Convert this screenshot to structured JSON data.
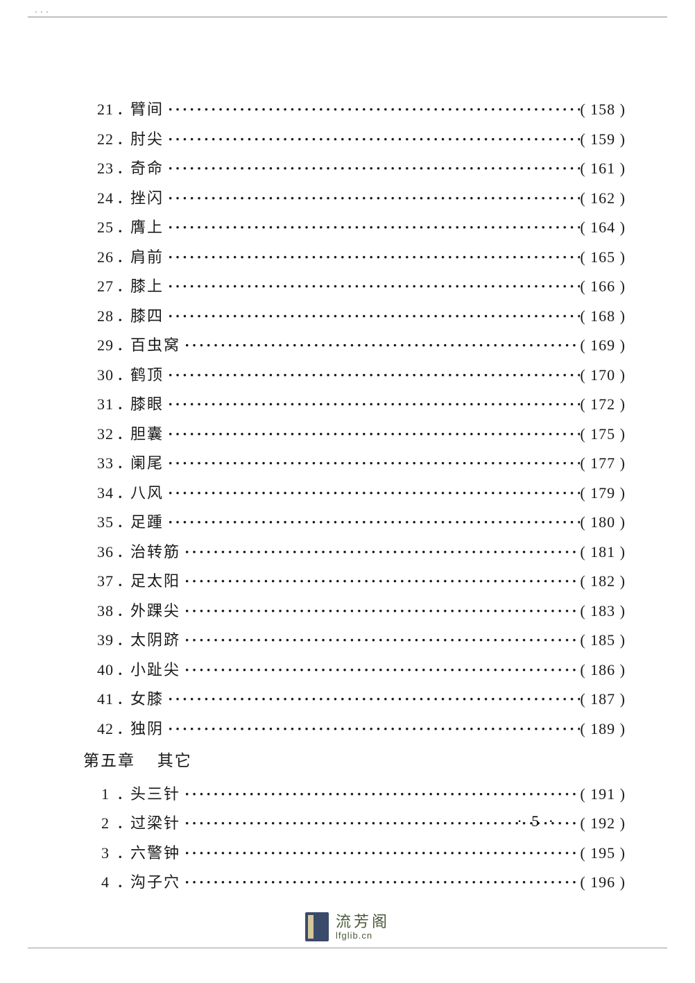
{
  "colors": {
    "text": "#1a1a1a",
    "background": "#ffffff",
    "border": "#888888",
    "logo_bg": "#3a4a6a",
    "logo_accent": "#d4c89a",
    "logo_text": "#4a5a3a"
  },
  "typography": {
    "body_fontsize": 22,
    "chapter_fontsize": 23,
    "font_family": "SimSun"
  },
  "top_mark": "···",
  "entries": [
    {
      "num": "21",
      "sep": "．",
      "title": "臂间",
      "page": "158"
    },
    {
      "num": "22",
      "sep": "．",
      "title": "肘尖",
      "page": "159"
    },
    {
      "num": "23",
      "sep": "．",
      "title": "奇命",
      "page": "161"
    },
    {
      "num": "24",
      "sep": "．",
      "title": "挫闪",
      "page": "162"
    },
    {
      "num": "25",
      "sep": "．",
      "title": "膺上",
      "page": "164"
    },
    {
      "num": "26",
      "sep": "．",
      "title": "肩前",
      "page": "165"
    },
    {
      "num": "27",
      "sep": "．",
      "title": "膝上",
      "page": "166"
    },
    {
      "num": "28",
      "sep": "．",
      "title": "膝四",
      "page": "168"
    },
    {
      "num": "29",
      "sep": "．",
      "title": "百虫窝",
      "page": "169"
    },
    {
      "num": "30",
      "sep": "．",
      "title": "鹤顶",
      "page": "170"
    },
    {
      "num": "31",
      "sep": "．",
      "title": "膝眼",
      "page": "172"
    },
    {
      "num": "32",
      "sep": "．",
      "title": "胆囊",
      "page": "175"
    },
    {
      "num": "33",
      "sep": "．",
      "title": "阑尾",
      "page": "177"
    },
    {
      "num": "34",
      "sep": "．",
      "title": "八风",
      "page": "179"
    },
    {
      "num": "35",
      "sep": "．",
      "title": "足踵",
      "page": "180"
    },
    {
      "num": "36",
      "sep": "．",
      "title": "治转筋",
      "page": "181"
    },
    {
      "num": "37",
      "sep": "．",
      "title": "足太阳",
      "page": "182"
    },
    {
      "num": "38",
      "sep": "．",
      "title": "外踝尖",
      "page": "183"
    },
    {
      "num": "39",
      "sep": "．",
      "title": "太阴跻",
      "page": "185"
    },
    {
      "num": "40",
      "sep": "．",
      "title": "小趾尖",
      "page": "186"
    },
    {
      "num": "41",
      "sep": "．",
      "title": "女膝",
      "page": "187"
    },
    {
      "num": "42",
      "sep": "．",
      "title": "独阴",
      "page": "189"
    }
  ],
  "chapter": {
    "label": "第五章",
    "title": "其它"
  },
  "sub_entries": [
    {
      "num": "1",
      "sep": "．",
      "title": "头三针",
      "page": "191"
    },
    {
      "num": "2",
      "sep": "．",
      "title": "过梁针",
      "page": "192"
    },
    {
      "num": "3",
      "sep": "．",
      "title": "六警钟",
      "page": "195"
    },
    {
      "num": "4",
      "sep": "．",
      "title": "沟子穴",
      "page": "196"
    }
  ],
  "page_number_display": "· 5 ·",
  "footer": {
    "brand": "流芳阁",
    "url": "lfglib.cn"
  },
  "dots_fill": "············································································",
  "page_prefix": "( ",
  "page_suffix": " )"
}
